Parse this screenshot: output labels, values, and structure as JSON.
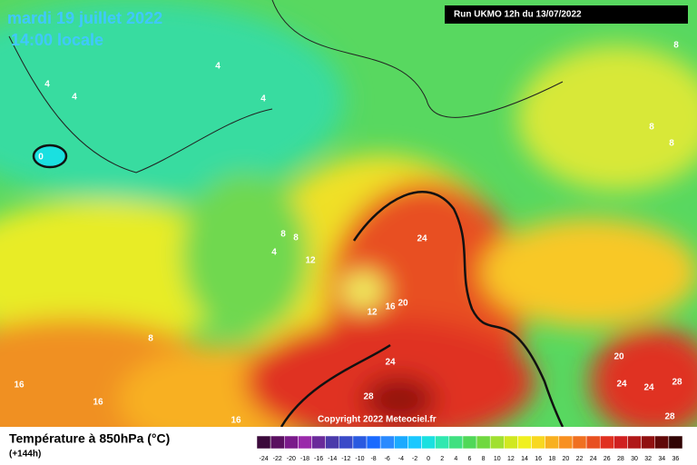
{
  "header": {
    "date": "mardi 19 juillet 2022",
    "time": "14:00 locale",
    "run": "Run UKMO 12h du 13/07/2022"
  },
  "footer": {
    "title": "Température à 850hPa (°C)",
    "lead": "(+144h)",
    "copyright": "Copyright 2022 Meteociel.fr"
  },
  "contour_labels": [
    4,
    4,
    4,
    4,
    0,
    8,
    8,
    8,
    8,
    4,
    8,
    12,
    24,
    12,
    16,
    20,
    8,
    24,
    28,
    16,
    16,
    16,
    20,
    24,
    24,
    28,
    28
  ],
  "legend": {
    "ticks": [
      -24,
      -22,
      -20,
      -18,
      -16,
      -14,
      -12,
      -10,
      -8,
      -6,
      -4,
      -2,
      0,
      2,
      4,
      6,
      8,
      10,
      12,
      14,
      16,
      18,
      20,
      22,
      24,
      26,
      28,
      30,
      32,
      34,
      36
    ],
    "colors": [
      "#3b0a3b",
      "#5a1060",
      "#7a1a8a",
      "#9a2aaa",
      "#6a2a9a",
      "#4a3aaa",
      "#3a4ac8",
      "#2a5ae0",
      "#1a6aff",
      "#2a8aff",
      "#1aaaff",
      "#1ac8ff",
      "#1ae0e0",
      "#30e8b0",
      "#40e080",
      "#50d858",
      "#70d840",
      "#a0e030",
      "#d0e820",
      "#f0f020",
      "#f8d820",
      "#f8b020",
      "#f89020",
      "#f07020",
      "#e85020",
      "#e03020",
      "#d02020",
      "#b01818",
      "#901010",
      "#600808",
      "#300404"
    ]
  }
}
